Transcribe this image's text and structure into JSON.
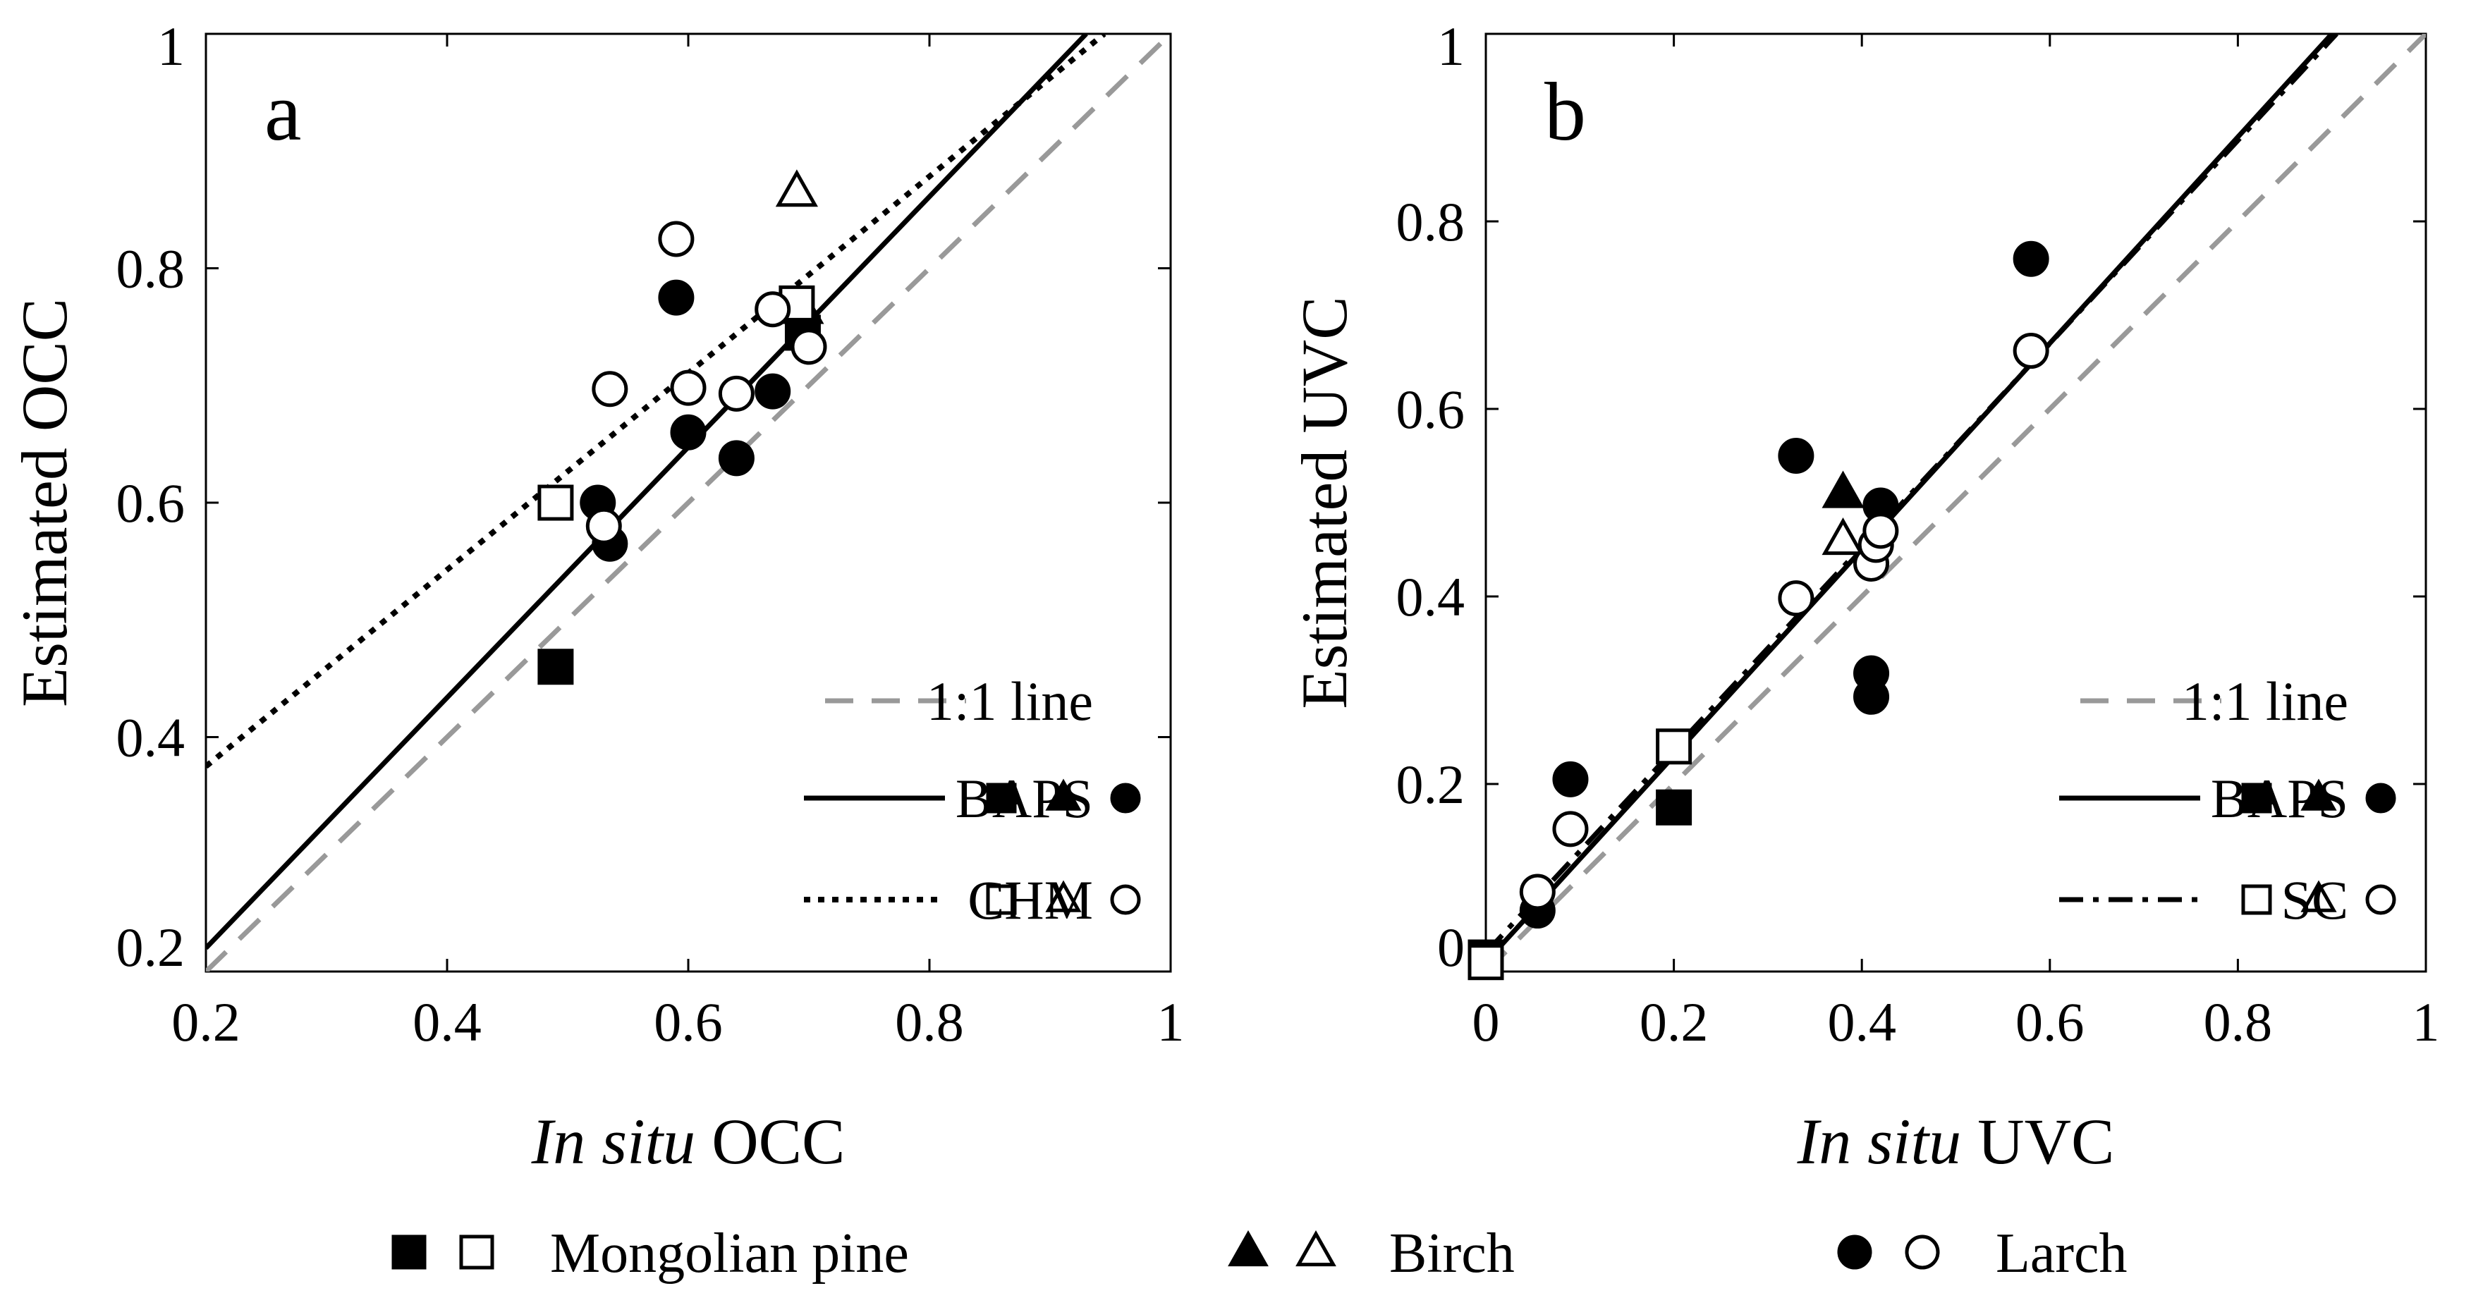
{
  "figure_legend": {
    "species": [
      {
        "name": "Mongolian pine",
        "marker": "square"
      },
      {
        "name": "Birch",
        "marker": "triangle"
      },
      {
        "name": "Larch",
        "marker": "circle"
      }
    ]
  },
  "chart_data": [
    {
      "type": "scatter",
      "panel": "a",
      "xlabel_italic": "In situ",
      "xlabel_rest": " OCC",
      "ylabel": "Estimated OCC",
      "xlim": [
        0.2,
        1
      ],
      "ylim": [
        0.2,
        1
      ],
      "xticks": [
        0.2,
        0.4,
        0.6,
        0.8,
        1
      ],
      "yticks": [
        0.2,
        0.4,
        0.6,
        0.8,
        1
      ],
      "xtick_labels": [
        "0.2",
        "0.4",
        "0.6",
        "0.8",
        "1"
      ],
      "ytick_labels": [
        "0.2",
        "0.4",
        "0.6",
        "0.8",
        "1"
      ],
      "lines": [
        {
          "name": "1:1 line",
          "style": "dashed",
          "color": "#999999",
          "points": [
            [
              0.2,
              0.2
            ],
            [
              1.0,
              1.0
            ]
          ]
        },
        {
          "name": "BAPS",
          "style": "solid",
          "color": "#000000",
          "points": [
            [
              0.2,
              0.22
            ],
            [
              0.93,
              1.0
            ]
          ]
        },
        {
          "name": "CHM",
          "style": "dotted",
          "color": "#000000",
          "points": [
            [
              0.2,
              0.375
            ],
            [
              0.945,
              1.0
            ]
          ]
        }
      ],
      "legend": [
        {
          "label": "1:1 line",
          "line": "dashed",
          "color": "#999999",
          "filled": null
        },
        {
          "label": "BAPS",
          "line": "solid",
          "color": "#000000",
          "filled": true
        },
        {
          "label": "CHM",
          "line": "dotted",
          "color": "#000000",
          "filled": false
        }
      ],
      "series": [
        {
          "method": "BAPS",
          "species": "Mongolian pine",
          "marker": "square",
          "filled": true,
          "points": [
            [
              0.49,
              0.46
            ],
            [
              0.695,
              0.745
            ]
          ]
        },
        {
          "method": "BAPS",
          "species": "Birch",
          "marker": "triangle",
          "filled": true,
          "points": [
            [
              0.695,
              0.765
            ]
          ]
        },
        {
          "method": "BAPS",
          "species": "Larch",
          "marker": "circle",
          "filled": true,
          "points": [
            [
              0.59,
              0.775
            ],
            [
              0.6,
              0.66
            ],
            [
              0.64,
              0.638
            ],
            [
              0.67,
              0.695
            ],
            [
              0.525,
              0.6
            ],
            [
              0.535,
              0.565
            ]
          ]
        },
        {
          "method": "CHM",
          "species": "Mongolian pine",
          "marker": "square",
          "filled": false,
          "points": [
            [
              0.49,
              0.6
            ],
            [
              0.69,
              0.77
            ]
          ]
        },
        {
          "method": "CHM",
          "species": "Birch",
          "marker": "triangle",
          "filled": false,
          "points": [
            [
              0.69,
              0.865
            ]
          ]
        },
        {
          "method": "CHM",
          "species": "Larch",
          "marker": "circle",
          "filled": false,
          "points": [
            [
              0.59,
              0.825
            ],
            [
              0.535,
              0.697
            ],
            [
              0.6,
              0.698
            ],
            [
              0.64,
              0.693
            ],
            [
              0.67,
              0.765
            ],
            [
              0.7,
              0.733
            ],
            [
              0.53,
              0.58
            ]
          ]
        }
      ]
    },
    {
      "type": "scatter",
      "panel": "b",
      "xlabel_italic": "In situ",
      "xlabel_rest": " UVC",
      "ylabel": "Estimated UVC",
      "xlim": [
        0,
        1
      ],
      "ylim": [
        0,
        1
      ],
      "xticks": [
        0,
        0.2,
        0.4,
        0.6,
        0.8,
        1
      ],
      "yticks": [
        0,
        0.2,
        0.4,
        0.6,
        0.8,
        1
      ],
      "xtick_labels": [
        "0",
        "0.2",
        "0.4",
        "0.6",
        "0.8",
        "1"
      ],
      "ytick_labels": [
        "0",
        "0.2",
        "0.4",
        "0.6",
        "0.8",
        "1"
      ],
      "lines": [
        {
          "name": "1:1 line",
          "style": "dashed",
          "color": "#999999",
          "points": [
            [
              0.0,
              0.0
            ],
            [
              1.0,
              1.0
            ]
          ]
        },
        {
          "name": "BAPS",
          "style": "solid",
          "color": "#000000",
          "points": [
            [
              0.0,
              0.01
            ],
            [
              0.9,
              1.0
            ]
          ]
        },
        {
          "name": "SC",
          "style": "dashdot",
          "color": "#000000",
          "points": [
            [
              0.0,
              0.02
            ],
            [
              0.905,
              1.0
            ]
          ]
        }
      ],
      "legend": [
        {
          "label": "1:1 line",
          "line": "dashed",
          "color": "#999999",
          "filled": null
        },
        {
          "label": "BAPS",
          "line": "solid",
          "color": "#000000",
          "filled": true
        },
        {
          "label": "SC",
          "line": "dashdot",
          "color": "#000000",
          "filled": false
        }
      ],
      "series": [
        {
          "method": "BAPS",
          "species": "Mongolian pine",
          "marker": "square",
          "filled": true,
          "points": [
            [
              0.0,
              0.015
            ],
            [
              0.2,
              0.175
            ]
          ]
        },
        {
          "method": "BAPS",
          "species": "Birch",
          "marker": "triangle",
          "filled": true,
          "points": [
            [
              0.38,
              0.51
            ]
          ]
        },
        {
          "method": "BAPS",
          "species": "Larch",
          "marker": "circle",
          "filled": true,
          "points": [
            [
              0.055,
              0.065
            ],
            [
              0.09,
              0.205
            ],
            [
              0.33,
              0.55
            ],
            [
              0.41,
              0.318
            ],
            [
              0.41,
              0.293
            ],
            [
              0.42,
              0.497
            ],
            [
              0.58,
              0.76
            ]
          ]
        },
        {
          "method": "SC",
          "species": "Mongolian pine",
          "marker": "square",
          "filled": false,
          "points": [
            [
              0.0,
              0.01
            ],
            [
              0.2,
              0.24
            ]
          ]
        },
        {
          "method": "SC",
          "species": "Birch",
          "marker": "triangle",
          "filled": false,
          "points": [
            [
              0.38,
              0.46
            ]
          ]
        },
        {
          "method": "SC",
          "species": "Larch",
          "marker": "circle",
          "filled": false,
          "points": [
            [
              0.055,
              0.085
            ],
            [
              0.09,
              0.152
            ],
            [
              0.33,
              0.398
            ],
            [
              0.41,
              0.435
            ],
            [
              0.415,
              0.455
            ],
            [
              0.42,
              0.47
            ],
            [
              0.58,
              0.662
            ]
          ]
        }
      ]
    }
  ]
}
